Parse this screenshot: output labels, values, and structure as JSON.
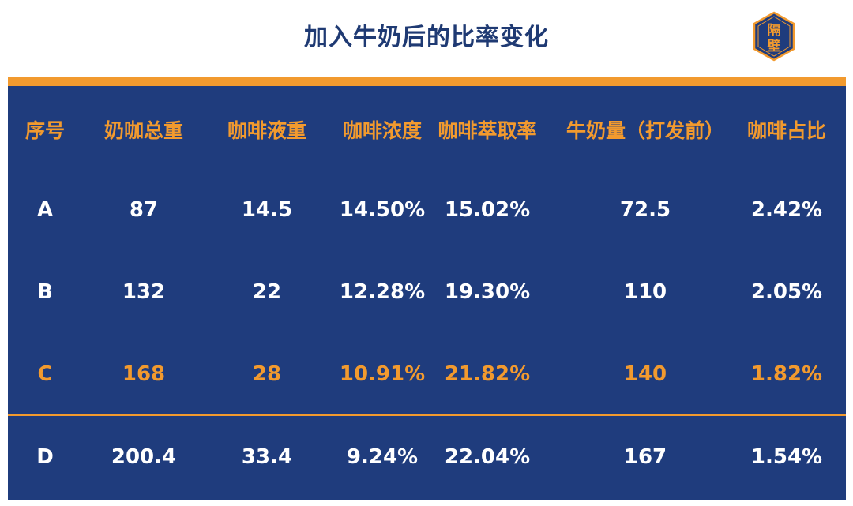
{
  "title": "加入牛奶后的比率变化",
  "logo": {
    "chars": [
      "隔",
      "壁"
    ],
    "colors": {
      "bg": "#1f3c7d",
      "border": "#f29a2e",
      "text": "#f29a2e"
    }
  },
  "colors": {
    "table_bg": "#1f3c7d",
    "accent": "#f29a2e",
    "text": "#ffffff",
    "title": "#1f3a73"
  },
  "chart_data": {
    "type": "table",
    "columns": [
      "序号",
      "奶咖总重",
      "咖啡液重",
      "咖啡浓度",
      "咖啡萃取率",
      "牛奶量（打发前）",
      "咖啡占比"
    ],
    "rows": [
      [
        "A",
        "87",
        "14.5",
        "14.50%",
        "15.02%",
        "72.5",
        "2.42%"
      ],
      [
        "B",
        "132",
        "22",
        "12.28%",
        "19.30%",
        "110",
        "2.05%"
      ],
      [
        "C",
        "168",
        "28",
        "10.91%",
        "21.82%",
        "140",
        "1.82%"
      ],
      [
        "D",
        "200.4",
        "33.4",
        "9.24%",
        "22.04%",
        "167",
        "1.54%"
      ]
    ],
    "highlighted_row": "C"
  }
}
